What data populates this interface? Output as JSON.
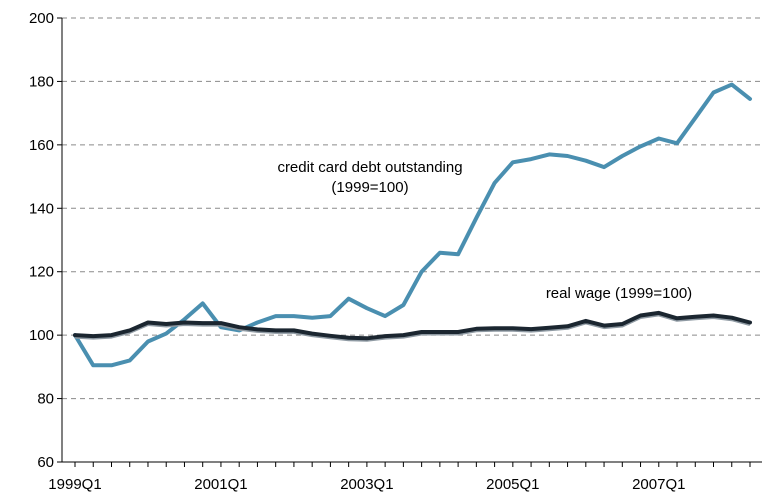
{
  "chart_data": {
    "type": "line",
    "xlabel": "",
    "ylabel": "",
    "ylim": [
      60,
      200
    ],
    "yticks": [
      60,
      80,
      100,
      120,
      140,
      160,
      180,
      200
    ],
    "grid": "horizontal-dashed",
    "x_tick_labels": [
      "1999Q1",
      "2001Q1",
      "2003Q1",
      "2005Q1",
      "2007Q1"
    ],
    "x": [
      "1999Q1",
      "1999Q2",
      "1999Q3",
      "1999Q4",
      "2000Q1",
      "2000Q2",
      "2000Q3",
      "2000Q4",
      "2001Q1",
      "2001Q2",
      "2001Q3",
      "2001Q4",
      "2002Q1",
      "2002Q2",
      "2002Q3",
      "2002Q4",
      "2003Q1",
      "2003Q2",
      "2003Q3",
      "2003Q4",
      "2004Q1",
      "2004Q2",
      "2004Q3",
      "2004Q4",
      "2005Q1",
      "2005Q2",
      "2005Q3",
      "2005Q4",
      "2006Q1",
      "2006Q2",
      "2006Q3",
      "2006Q4",
      "2007Q1",
      "2007Q2",
      "2007Q3",
      "2007Q4",
      "2008Q1",
      "2008Q2"
    ],
    "series": [
      {
        "name": "credit card debt outstanding (1999=100)",
        "color": "#4a8fb0",
        "values": [
          100,
          90.5,
          90.5,
          92,
          98,
          100.5,
          105,
          110,
          102.5,
          101.5,
          104,
          106,
          106,
          105.5,
          106,
          111.5,
          108.5,
          106,
          109.5,
          120,
          126,
          125.5,
          137,
          148,
          154.5,
          155.5,
          157,
          156.5,
          155,
          153,
          156.5,
          159.5,
          162,
          160.5,
          168.5,
          176.5,
          179,
          174.5
        ]
      },
      {
        "name": "real wage (1999=100)",
        "color": "#1b2630",
        "values": [
          100,
          99.7,
          100,
          101.5,
          104,
          103.5,
          104,
          103.8,
          103.8,
          102.5,
          101.8,
          101.5,
          101.5,
          100.5,
          99.8,
          99.2,
          99,
          99.7,
          100,
          101,
          101,
          101,
          102,
          102.2,
          102.2,
          101.9,
          102.3,
          102.8,
          104.5,
          103,
          103.5,
          106.2,
          107,
          105.3,
          105.8,
          106.2,
          105.5,
          104
        ]
      }
    ],
    "annotations": [
      {
        "id": "credit",
        "lines": [
          "credit card debt outstanding",
          "(1999=100)"
        ]
      },
      {
        "id": "wage",
        "lines": [
          "real wage (1999=100)"
        ]
      }
    ]
  }
}
